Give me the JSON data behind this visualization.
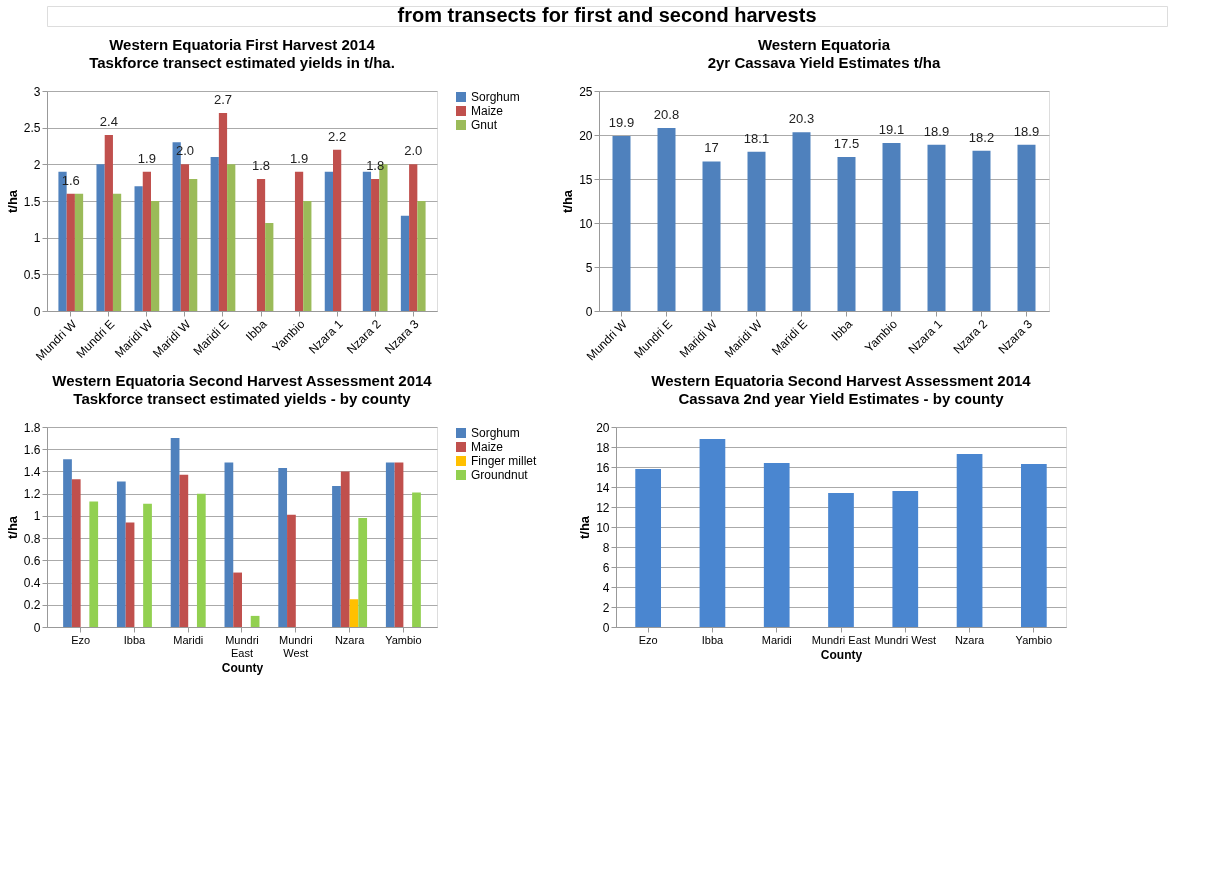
{
  "chart_data": [
    {
      "type": "bar",
      "title": "Western Equatoria First Harvest 2014",
      "subtitle": "Taskforce transect estimated yields in t/ha.",
      "ylabel": "t/ha",
      "annotations": [
        "from transects for first and second harvests"
      ],
      "categories": [
        "Mundri W",
        "Mundri E",
        "Maridi W",
        "Maridi W",
        "Maridi E",
        "Ibba",
        "Yambio",
        "Nzara 1",
        "Nzara 2",
        "Nzara 3"
      ],
      "series": [
        {
          "name": "Sorghum",
          "color": "#4f81bd",
          "values": [
            1.9,
            2.0,
            1.7,
            2.3,
            2.1,
            null,
            null,
            1.9,
            1.9,
            1.3
          ]
        },
        {
          "name": "Maize",
          "color": "#c0504d",
          "values": [
            1.6,
            2.4,
            1.9,
            2.0,
            2.7,
            1.8,
            1.9,
            2.2,
            1.8,
            2.0
          ],
          "value_labels": [
            "1.6",
            "2.4",
            "1.9",
            "2.0",
            "2.7",
            "1.8",
            "1.9",
            "2.2",
            "1.8",
            "2.0"
          ]
        },
        {
          "name": "Gnut",
          "color": "#9bbb59",
          "values": [
            1.6,
            1.6,
            1.5,
            1.8,
            2.0,
            1.2,
            1.5,
            null,
            2.0,
            1.5
          ]
        }
      ],
      "ylim": [
        0,
        3
      ],
      "yticks": [
        0,
        0.5,
        1,
        1.5,
        2,
        2.5,
        3
      ],
      "grid": "y",
      "legend": "right"
    },
    {
      "type": "bar",
      "title": "Western Equatoria",
      "subtitle": "2yr Cassava Yield Estimates t/ha",
      "ylabel": "t/ha",
      "categories": [
        "Mundri W",
        "Mundri E",
        "Maridi W",
        "Maridi W",
        "Maridi E",
        "Ibba",
        "Yambio",
        "Nzara 1",
        "Nzara 2",
        "Nzara 3"
      ],
      "series": [
        {
          "color": "#4f81bd",
          "values": [
            19.9,
            20.8,
            17,
            18.1,
            20.3,
            17.5,
            19.1,
            18.9,
            18.2,
            18.9
          ]
        }
      ],
      "data_labels": true,
      "ylim": [
        0,
        25
      ],
      "yticks": [
        0,
        5,
        10,
        15,
        20,
        25
      ],
      "grid": "y"
    },
    {
      "type": "bar",
      "title": "Western Equatoria Second Harvest Assessment 2014",
      "subtitle": "Taskforce transect estimated yields - by county",
      "xlabel": "County",
      "ylabel": "t/ha",
      "categories": [
        "Ezo",
        "Ibba",
        "Maridi",
        "Mundri East",
        "Mundri West",
        "Nzara",
        "Yambio"
      ],
      "series": [
        {
          "name": "Sorghum",
          "color": "#4f81bd",
          "values": [
            1.51,
            1.31,
            1.7,
            1.48,
            1.43,
            1.27,
            1.48
          ]
        },
        {
          "name": "Maize",
          "color": "#c0504d",
          "values": [
            1.33,
            0.94,
            1.37,
            0.49,
            1.01,
            1.4,
            1.48
          ]
        },
        {
          "name": "Finger millet",
          "color": "#ffc000",
          "values": [
            null,
            null,
            null,
            null,
            null,
            0.25,
            null
          ]
        },
        {
          "name": "Groundnut",
          "color": "#92d050",
          "values": [
            1.13,
            1.11,
            1.2,
            0.1,
            null,
            0.98,
            1.21
          ]
        }
      ],
      "ylim": [
        0,
        1.8
      ],
      "yticks": [
        0,
        0.2,
        0.4,
        0.6,
        0.8,
        1,
        1.2,
        1.4,
        1.6,
        1.8
      ],
      "grid": "y",
      "legend": "right"
    },
    {
      "type": "bar",
      "title": "Western Equatoria Second Harvest Assessment 2014",
      "subtitle": "Cassava 2nd year Yield Estimates - by county",
      "xlabel": "County",
      "ylabel": "t/ha",
      "categories": [
        "Ezo",
        "Ibba",
        "Maridi",
        "Mundri East",
        "Mundri West",
        "Nzara",
        "Yambio"
      ],
      "series": [
        {
          "color": "#4a86d0",
          "values": [
            15.8,
            18.8,
            16.4,
            13.4,
            13.6,
            17.3,
            16.3
          ]
        }
      ],
      "ylim": [
        0,
        20
      ],
      "yticks": [
        0,
        2,
        4,
        6,
        8,
        10,
        12,
        14,
        16,
        18,
        20
      ],
      "grid": "y"
    }
  ]
}
